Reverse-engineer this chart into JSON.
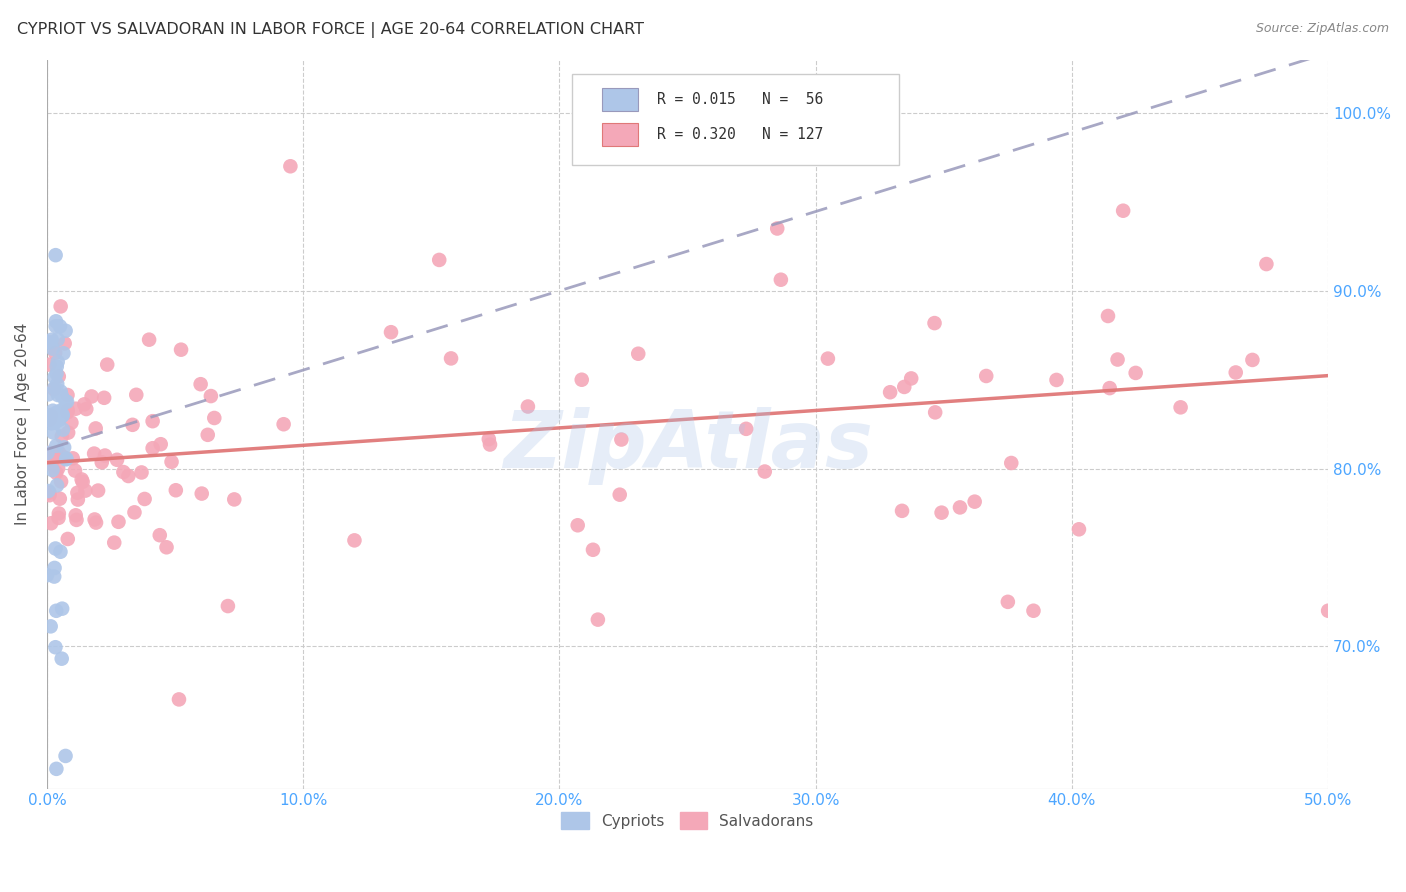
{
  "title": "CYPRIOT VS SALVADORAN IN LABOR FORCE | AGE 20-64 CORRELATION CHART",
  "source": "Source: ZipAtlas.com",
  "ylabel": "In Labor Force | Age 20-64",
  "xlim": [
    0.0,
    0.5
  ],
  "ylim": [
    0.62,
    1.03
  ],
  "cypriot_color": "#aec6e8",
  "salvadoran_color": "#f4a8b8",
  "cypriot_line_color": "#9999bb",
  "salvadoran_line_color": "#e07878",
  "watermark": "ZipAtlas",
  "watermark_color": "#aec6e8",
  "title_color": "#333333",
  "axis_label_color": "#4da6ff",
  "legend_text_color": "#333333",
  "grid_color": "#cccccc",
  "ytick_vals": [
    0.7,
    0.8,
    0.9,
    1.0
  ],
  "ytick_labels": [
    "70.0%",
    "80.0%",
    "90.0%",
    "100.0%"
  ],
  "xtick_vals": [
    0.0,
    0.1,
    0.2,
    0.3,
    0.4,
    0.5
  ],
  "xtick_labels": [
    "0.0%",
    "10.0%",
    "20.0%",
    "30.0%",
    "40.0%",
    "50.0%"
  ]
}
